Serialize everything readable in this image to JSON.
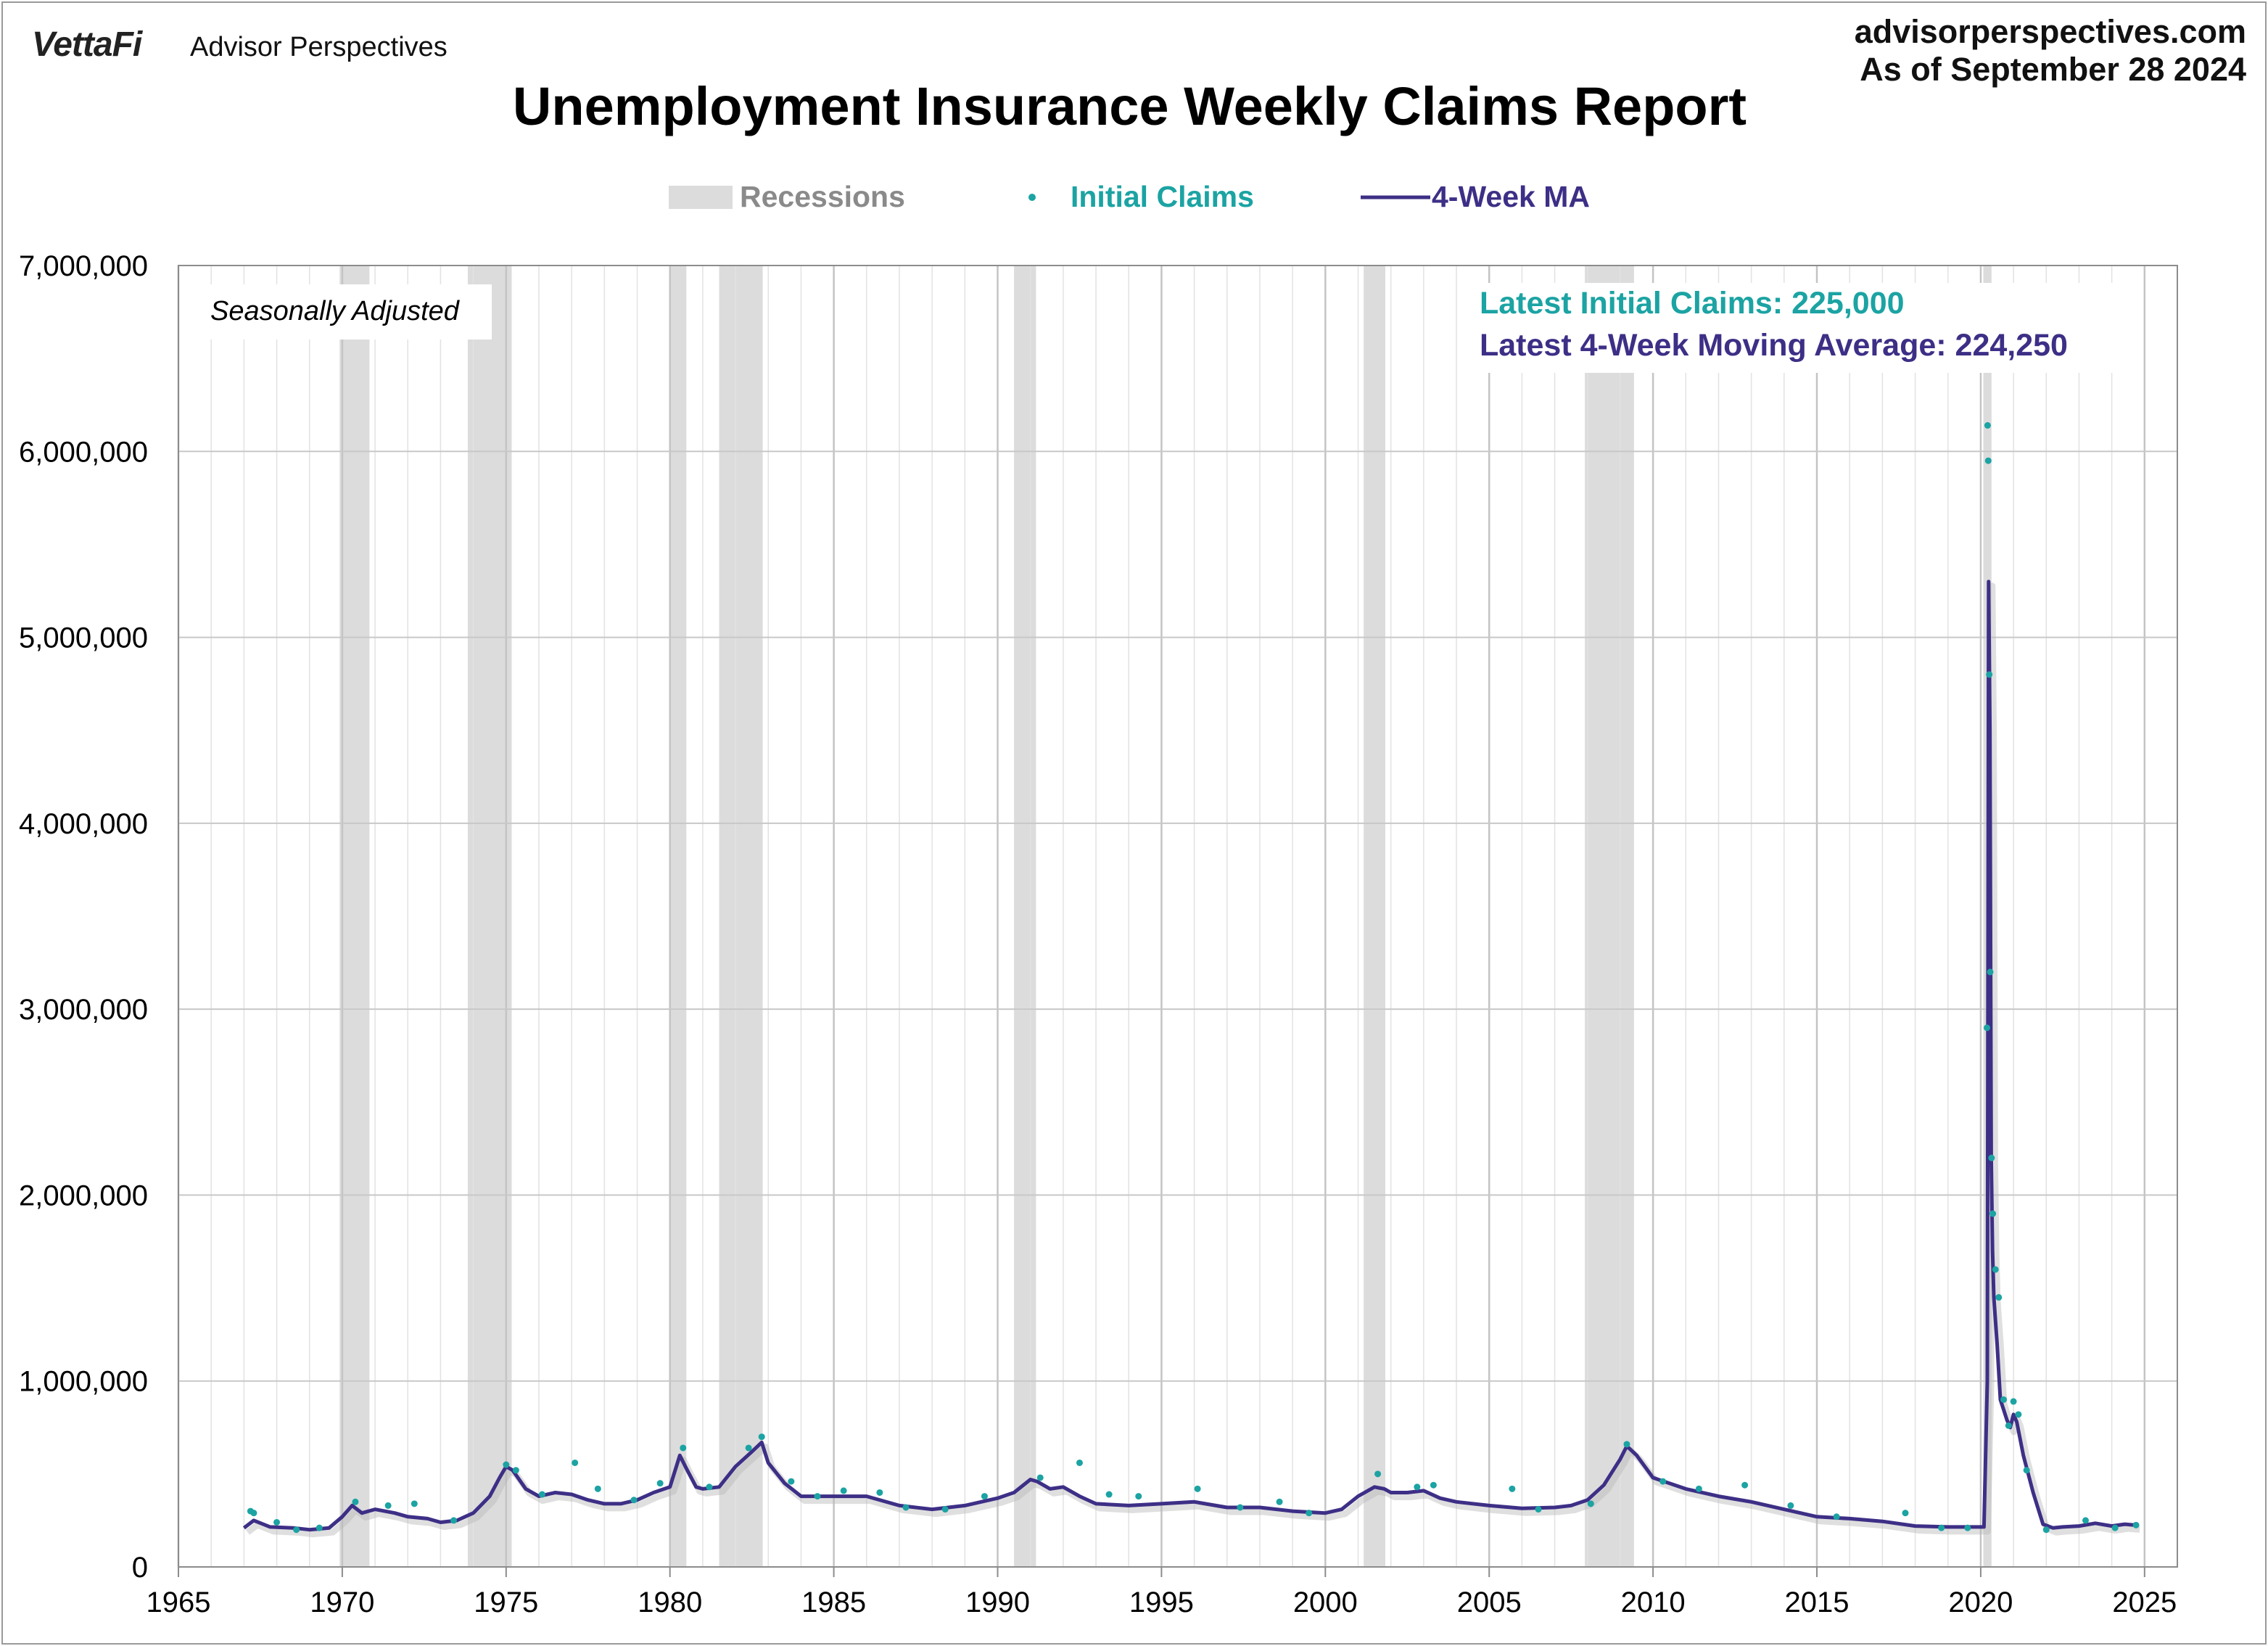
{
  "header": {
    "brand": "VettaFi",
    "brand_sub": "Advisor Perspectives",
    "site": "advisorperspectives.com",
    "as_of": "As of September 28 2024"
  },
  "colors": {
    "initial_claims": "#1ca3a3",
    "moving_average": "#3d2f86",
    "recession": "#dcdcdc",
    "grid": "#c8c8c8"
  },
  "chart_data": {
    "type": "line",
    "title": "Unemployment Insurance Weekly Claims Report",
    "note": "Seasonally Adjusted",
    "annotations": {
      "latest_claims": "Latest Initial Claims: 225,000",
      "latest_ma": "Latest 4-Week Moving Average: 224,250"
    },
    "legend": {
      "placement": "top-center",
      "items": [
        "Recessions",
        "Initial Claims",
        "4-Week MA"
      ]
    },
    "xlim": [
      1965,
      2026
    ],
    "ylim": [
      0,
      7000000
    ],
    "x_ticks": [
      1965,
      1970,
      1975,
      1980,
      1985,
      1990,
      1995,
      2000,
      2005,
      2010,
      2015,
      2020,
      2025
    ],
    "y_ticks": [
      0,
      1000000,
      2000000,
      3000000,
      4000000,
      5000000,
      6000000,
      7000000
    ],
    "y_tick_labels": [
      "0",
      "1,000,000",
      "2,000,000",
      "3,000,000",
      "4,000,000",
      "5,000,000",
      "6,000,000",
      "7,000,000"
    ],
    "recessions": [
      [
        1969.92,
        1970.83
      ],
      [
        1973.83,
        1975.17
      ],
      [
        1980.0,
        1980.5
      ],
      [
        1981.5,
        1982.83
      ],
      [
        1990.5,
        1991.17
      ],
      [
        2001.17,
        2001.83
      ],
      [
        2007.92,
        2009.42
      ],
      [
        2020.08,
        2020.33
      ]
    ],
    "series": [
      {
        "name": "4-Week MA",
        "x": [
          1967.0,
          1967.3,
          1967.8,
          1968.5,
          1969.0,
          1969.6,
          1970.0,
          1970.3,
          1970.6,
          1971.0,
          1971.6,
          1972.0,
          1972.6,
          1973.0,
          1973.5,
          1974.0,
          1974.5,
          1974.8,
          1975.0,
          1975.2,
          1975.6,
          1976.0,
          1976.5,
          1977.0,
          1977.5,
          1978.0,
          1978.5,
          1979.0,
          1979.5,
          1980.0,
          1980.3,
          1980.5,
          1980.8,
          1981.0,
          1981.5,
          1982.0,
          1982.5,
          1982.8,
          1983.0,
          1983.5,
          1984.0,
          1985.0,
          1986.0,
          1987.0,
          1988.0,
          1989.0,
          1990.0,
          1990.5,
          1991.0,
          1991.2,
          1991.6,
          1992.0,
          1992.5,
          1993.0,
          1994.0,
          1995.0,
          1996.0,
          1997.0,
          1998.0,
          1999.0,
          2000.0,
          2000.5,
          2001.0,
          2001.5,
          2001.8,
          2002.0,
          2002.5,
          2003.0,
          2003.5,
          2004.0,
          2005.0,
          2006.0,
          2007.0,
          2007.5,
          2008.0,
          2008.5,
          2009.0,
          2009.2,
          2009.5,
          2010.0,
          2011.0,
          2012.0,
          2013.0,
          2014.0,
          2015.0,
          2016.0,
          2017.0,
          2018.0,
          2019.0,
          2019.9,
          2020.1,
          2020.2,
          2020.24,
          2020.28,
          2020.32,
          2020.36,
          2020.4,
          2020.5,
          2020.6,
          2020.8,
          2020.9,
          2021.0,
          2021.1,
          2021.3,
          2021.6,
          2021.9,
          2022.2,
          2022.5,
          2023.0,
          2023.5,
          2024.0,
          2024.4,
          2024.74
        ],
        "values": [
          210000,
          250000,
          215000,
          210000,
          200000,
          210000,
          270000,
          330000,
          290000,
          310000,
          290000,
          270000,
          260000,
          240000,
          250000,
          290000,
          380000,
          480000,
          540000,
          520000,
          420000,
          380000,
          400000,
          390000,
          360000,
          340000,
          340000,
          360000,
          400000,
          430000,
          600000,
          530000,
          430000,
          420000,
          430000,
          540000,
          620000,
          670000,
          560000,
          450000,
          380000,
          380000,
          380000,
          330000,
          310000,
          330000,
          370000,
          400000,
          470000,
          460000,
          420000,
          430000,
          380000,
          340000,
          330000,
          340000,
          350000,
          320000,
          320000,
          300000,
          290000,
          310000,
          380000,
          430000,
          420000,
          400000,
          400000,
          410000,
          370000,
          350000,
          330000,
          315000,
          320000,
          330000,
          360000,
          440000,
          580000,
          650000,
          600000,
          480000,
          420000,
          380000,
          350000,
          310000,
          270000,
          260000,
          245000,
          220000,
          215000,
          215000,
          215000,
          1000000,
          5300000,
          4500000,
          2200000,
          1700000,
          1450000,
          1200000,
          900000,
          790000,
          750000,
          820000,
          780000,
          600000,
          400000,
          230000,
          210000,
          215000,
          220000,
          235000,
          220000,
          230000,
          224250
        ]
      },
      {
        "name": "Initial Claims",
        "x": [
          1967.2,
          1967.3,
          1968.0,
          1968.6,
          1969.3,
          1970.4,
          1971.4,
          1972.2,
          1973.4,
          1975.0,
          1975.3,
          1976.1,
          1977.1,
          1977.8,
          1978.9,
          1979.7,
          1980.4,
          1981.2,
          1982.4,
          1982.8,
          1983.7,
          1984.5,
          1985.3,
          1986.4,
          1987.2,
          1988.4,
          1989.6,
          1991.3,
          1992.5,
          1993.4,
          1994.3,
          1996.1,
          1997.4,
          1998.6,
          1999.5,
          2001.6,
          2002.8,
          2003.3,
          2005.7,
          2006.5,
          2008.1,
          2009.2,
          2010.3,
          2011.4,
          2012.8,
          2014.2,
          2015.6,
          2017.7,
          2018.8,
          2019.6,
          2020.19,
          2020.21,
          2020.23,
          2020.26,
          2020.29,
          2020.33,
          2020.37,
          2020.45,
          2020.55,
          2020.7,
          2020.85,
          2021.0,
          2021.15,
          2021.4,
          2022.0,
          2023.2,
          2024.1,
          2024.74
        ],
        "values": [
          300000,
          290000,
          240000,
          200000,
          210000,
          350000,
          330000,
          340000,
          250000,
          550000,
          520000,
          390000,
          560000,
          420000,
          360000,
          450000,
          640000,
          430000,
          640000,
          700000,
          460000,
          380000,
          410000,
          400000,
          320000,
          310000,
          380000,
          480000,
          560000,
          390000,
          380000,
          420000,
          320000,
          350000,
          290000,
          500000,
          430000,
          440000,
          420000,
          310000,
          340000,
          660000,
          460000,
          420000,
          440000,
          330000,
          270000,
          290000,
          210000,
          210000,
          2900000,
          6140000,
          5950000,
          4800000,
          3200000,
          2200000,
          1900000,
          1600000,
          1450000,
          900000,
          760000,
          890000,
          820000,
          520000,
          200000,
          250000,
          210000,
          225000
        ]
      }
    ]
  }
}
